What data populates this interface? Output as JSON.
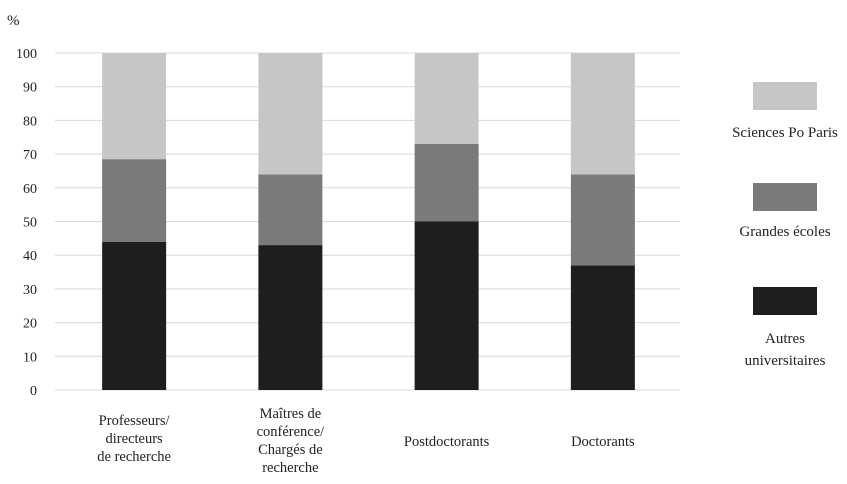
{
  "chart_data": {
    "type": "bar",
    "stacked": true,
    "unit_label": "%",
    "categories": [
      [
        "Professeurs/",
        "directeurs",
        "de recherche"
      ],
      [
        "Maîtres de",
        "conférence/",
        "Chargés de",
        "recherche"
      ],
      [
        "Postdoctorants"
      ],
      [
        "Doctorants"
      ]
    ],
    "series": [
      {
        "name": [
          "Autres",
          "universitaires"
        ],
        "color": "#1e1e1e",
        "values": [
          44,
          43,
          50,
          37
        ]
      },
      {
        "name": [
          "Grandes écoles"
        ],
        "color": "#7a7a7a",
        "values": [
          24.5,
          21,
          23,
          27
        ]
      },
      {
        "name": [
          "Sciences Po Paris"
        ],
        "color": "#c6c6c6",
        "values": [
          31.5,
          36,
          27,
          36
        ]
      }
    ],
    "legend_order": [
      2,
      1,
      0
    ],
    "ylim": [
      0,
      100
    ],
    "yticks": [
      0,
      10,
      20,
      30,
      40,
      50,
      60,
      70,
      80,
      90,
      100
    ],
    "grid": true,
    "legend_position": "right"
  }
}
